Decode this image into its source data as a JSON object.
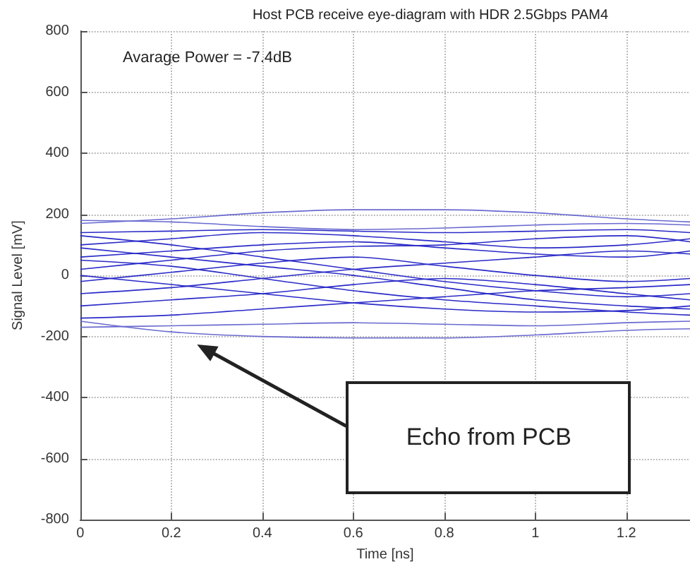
{
  "chart_data": {
    "type": "line",
    "title": "Host PCB receive eye-diagram with HDR 2.5Gbps PAM4",
    "xlabel": "Time [ns]",
    "ylabel": "Signal Level [mV]",
    "x": [
      0,
      0.2,
      0.4,
      0.6,
      0.8,
      1.0,
      1.2,
      1.34
    ],
    "series": [
      {
        "color": "#6a6ad0",
        "values": [
          170,
          185,
          205,
          215,
          215,
          205,
          185,
          175
        ]
      },
      {
        "color": "#6a6ad0",
        "values": [
          -150,
          -185,
          -200,
          -205,
          -205,
          -195,
          -180,
          -175
        ]
      },
      {
        "color": "#2a2ac8",
        "values": [
          140,
          145,
          150,
          145,
          140,
          145,
          150,
          140
        ]
      },
      {
        "color": "#2a2ac8",
        "values": [
          100,
          120,
          140,
          130,
          110,
          90,
          100,
          120
        ]
      },
      {
        "color": "#2a2ac8",
        "values": [
          60,
          80,
          100,
          110,
          90,
          70,
          60,
          80
        ]
      },
      {
        "color": "#2a2ac8",
        "values": [
          20,
          50,
          80,
          95,
          100,
          120,
          130,
          110
        ]
      },
      {
        "color": "#2a2ac8",
        "values": [
          -20,
          10,
          40,
          60,
          30,
          0,
          -20,
          -10
        ]
      },
      {
        "color": "#2a2ac8",
        "values": [
          -60,
          -40,
          -10,
          20,
          40,
          60,
          80,
          70
        ]
      },
      {
        "color": "#2a2ac8",
        "values": [
          -100,
          -80,
          -60,
          -30,
          -10,
          -30,
          -60,
          -80
        ]
      },
      {
        "color": "#2a2ac8",
        "values": [
          -140,
          -130,
          -110,
          -90,
          -70,
          -50,
          -40,
          -30
        ]
      },
      {
        "color": "#2a2ac8",
        "values": [
          130,
          100,
          60,
          20,
          -20,
          -50,
          -70,
          -60
        ]
      },
      {
        "color": "#2a2ac8",
        "values": [
          90,
          60,
          30,
          0,
          -40,
          -80,
          -100,
          -110
        ]
      },
      {
        "color": "#2a2ac8",
        "values": [
          50,
          30,
          -10,
          -50,
          -80,
          -100,
          -120,
          -130
        ]
      },
      {
        "color": "#2a2ac8",
        "values": [
          0,
          -30,
          -60,
          -90,
          -110,
          -120,
          -115,
          -100
        ]
      },
      {
        "color": "#6a6ad0",
        "values": [
          180,
          175,
          160,
          150,
          155,
          165,
          170,
          165
        ]
      },
      {
        "color": "#6a6ad0",
        "values": [
          -170,
          -165,
          -160,
          -155,
          -160,
          -165,
          -155,
          -150
        ]
      }
    ],
    "xlim": [
      0,
      1.34
    ],
    "xticks": [
      0,
      0.2,
      0.4,
      0.6,
      0.8,
      1,
      1.2
    ],
    "ylim": [
      -800,
      800
    ],
    "yticks": [
      -800,
      -600,
      -400,
      -200,
      0,
      200,
      400,
      600,
      800
    ],
    "grid": true,
    "marker": "none",
    "line_style": "solid",
    "annotations": [
      "Avarage Power = -7.4dB",
      "Echo from PCB"
    ]
  }
}
